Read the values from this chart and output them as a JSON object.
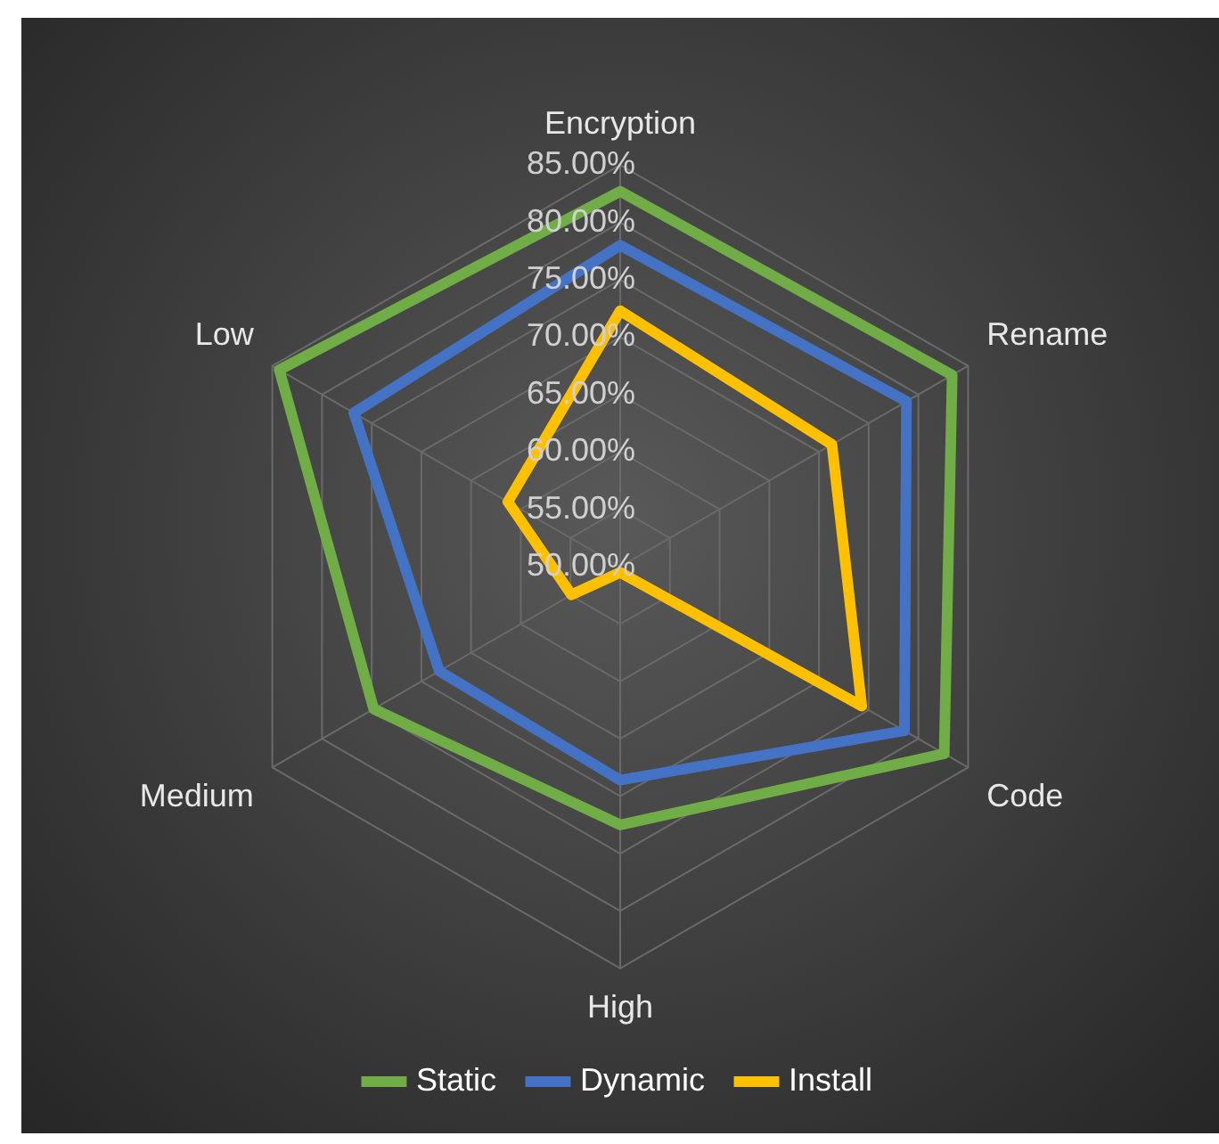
{
  "chart_data": {
    "type": "radar",
    "categories": [
      "Encryption",
      "Rename",
      "Code",
      "High",
      "Medium",
      "Low"
    ],
    "series": [
      {
        "name": "Static",
        "color": "#70ad47",
        "values": [
          82.7,
          83.4,
          82.6,
          72.5,
          74.8,
          84.3
        ]
      },
      {
        "name": "Dynamic",
        "color": "#4472c4",
        "values": [
          78,
          78.8,
          78.6,
          68.6,
          68.2,
          76.8
        ]
      },
      {
        "name": "Install",
        "color": "#ffc000",
        "values": [
          72.3,
          71.3,
          74.3,
          50.5,
          54.9,
          61.3
        ]
      }
    ],
    "ylim": [
      50,
      85
    ],
    "yticks": [
      {
        "value": 50,
        "label": "50.00%"
      },
      {
        "value": 55,
        "label": "55.00%"
      },
      {
        "value": 60,
        "label": "60.00%"
      },
      {
        "value": 65,
        "label": "65.00%"
      },
      {
        "value": 70,
        "label": "70.00%"
      },
      {
        "value": 75,
        "label": "75.00%"
      },
      {
        "value": 80,
        "label": "80.00%"
      },
      {
        "value": 85,
        "label": "85.00%"
      }
    ],
    "grid": true,
    "legend": "bottom",
    "marker": "none",
    "line_style": "solid"
  }
}
